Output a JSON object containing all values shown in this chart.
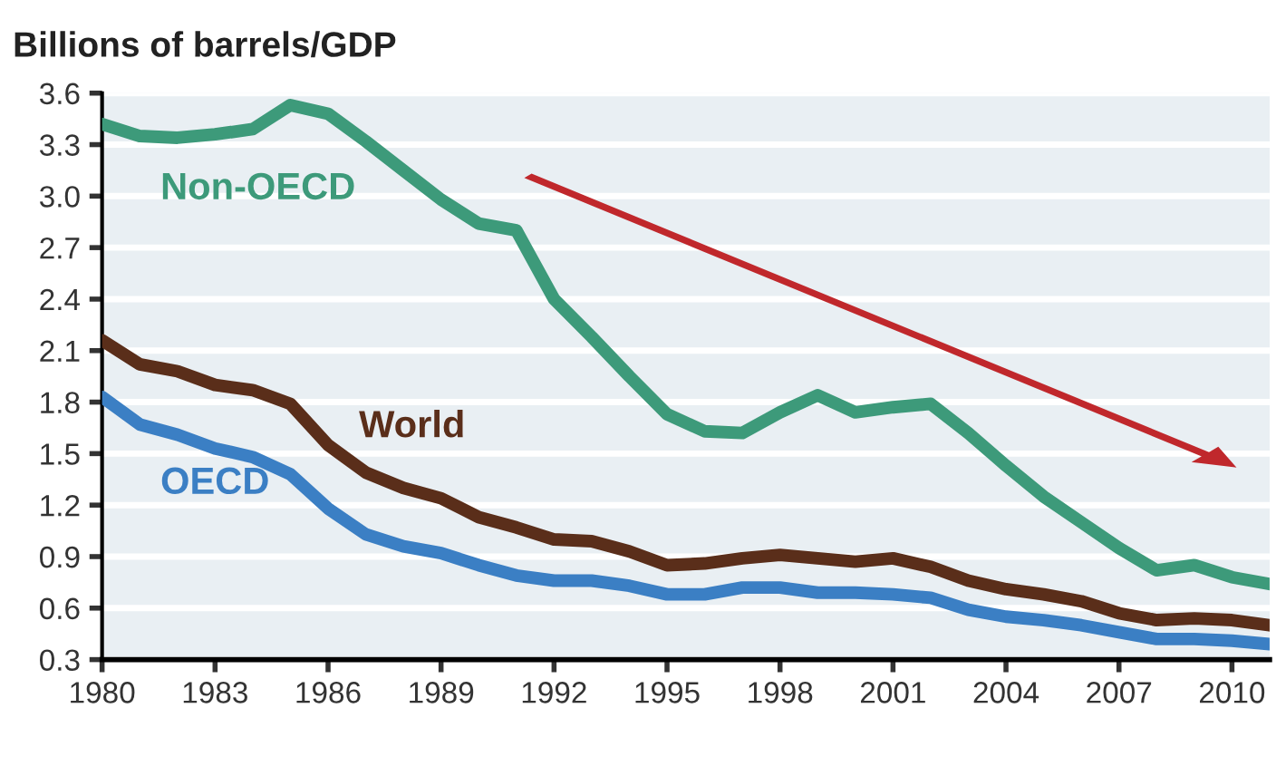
{
  "chart_data": {
    "type": "line",
    "title": "Billions of barrels/GDP",
    "x": [
      1980,
      1981,
      1982,
      1983,
      1984,
      1985,
      1986,
      1987,
      1988,
      1989,
      1990,
      1991,
      1992,
      1993,
      1994,
      1995,
      1996,
      1997,
      1998,
      1999,
      2000,
      2001,
      2002,
      2003,
      2004,
      2005,
      2006,
      2007,
      2008,
      2009,
      2010,
      2011
    ],
    "series": [
      {
        "name": "Non-OECD",
        "color": "#3d9a7a",
        "values": [
          3.42,
          3.35,
          3.34,
          3.36,
          3.39,
          3.53,
          3.48,
          3.32,
          3.15,
          2.98,
          2.84,
          2.8,
          2.4,
          2.18,
          1.95,
          1.73,
          1.63,
          1.62,
          1.74,
          1.84,
          1.74,
          1.77,
          1.79,
          1.62,
          1.43,
          1.25,
          1.1,
          0.95,
          0.82,
          0.85,
          0.78,
          0.74
        ]
      },
      {
        "name": "World",
        "color": "#5a2e1a",
        "values": [
          2.16,
          2.02,
          1.98,
          1.9,
          1.87,
          1.79,
          1.55,
          1.39,
          1.3,
          1.24,
          1.13,
          1.07,
          1.0,
          0.99,
          0.93,
          0.85,
          0.86,
          0.89,
          0.91,
          0.89,
          0.87,
          0.89,
          0.84,
          0.76,
          0.71,
          0.68,
          0.64,
          0.57,
          0.53,
          0.54,
          0.53,
          0.5
        ]
      },
      {
        "name": "OECD",
        "color": "#3b7fc4",
        "values": [
          1.83,
          1.67,
          1.61,
          1.53,
          1.48,
          1.38,
          1.18,
          1.03,
          0.96,
          0.92,
          0.85,
          0.79,
          0.76,
          0.76,
          0.73,
          0.68,
          0.68,
          0.72,
          0.72,
          0.69,
          0.69,
          0.68,
          0.66,
          0.59,
          0.55,
          0.53,
          0.5,
          0.46,
          0.42,
          0.42,
          0.41,
          0.39
        ]
      }
    ],
    "xlim": [
      1980,
      2011
    ],
    "xticks": [
      1980,
      1983,
      1986,
      1989,
      1992,
      1995,
      1998,
      2001,
      2004,
      2007,
      2010
    ],
    "ylim": [
      0.3,
      3.6
    ],
    "yticks": [
      {
        "value": 0.3,
        "label": "0.3"
      },
      {
        "value": 0.6,
        "label": "0.6"
      },
      {
        "value": 0.9,
        "label": "0.9"
      },
      {
        "value": 1.2,
        "label": "1.2"
      },
      {
        "value": 1.5,
        "label": "1.5"
      },
      {
        "value": 1.8,
        "label": "1.8"
      },
      {
        "value": 2.1,
        "label": "2.1"
      },
      {
        "value": 2.4,
        "label": "2.4"
      },
      {
        "value": 2.7,
        "label": "2.7"
      },
      {
        "value": 3.0,
        "label": "3.0"
      },
      {
        "value": 3.3,
        "label": "3.3"
      },
      {
        "value": 3.6,
        "label": "3.6"
      }
    ],
    "grid": "y",
    "legend": false,
    "marker": "none",
    "line_style": "solid"
  }
}
